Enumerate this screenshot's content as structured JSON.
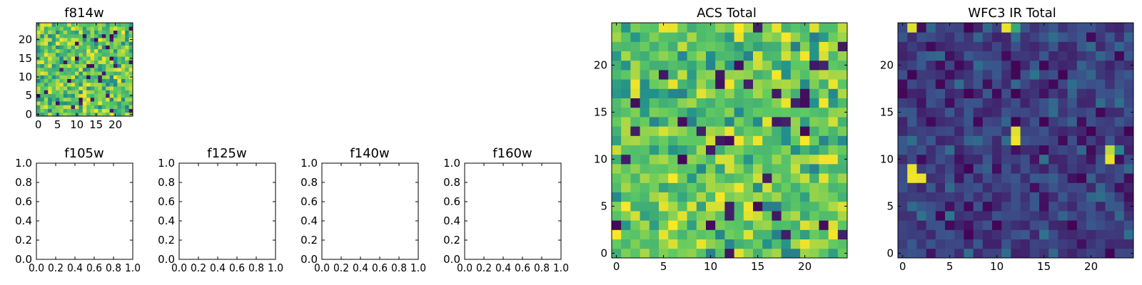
{
  "chart_data": [
    {
      "id": "f814w",
      "type": "heatmap",
      "title": "f814w",
      "grid_size": 25,
      "xlim": [
        -0.5,
        24.5
      ],
      "ylim": [
        -0.5,
        24.5
      ],
      "xticks": [
        0,
        5,
        10,
        15,
        20
      ],
      "yticks": [
        0,
        5,
        10,
        15,
        20
      ],
      "colormap": "viridis",
      "color_range": [
        0,
        1
      ],
      "seed": 814,
      "value_profile": "high"
    },
    {
      "id": "acs_total",
      "type": "heatmap",
      "title": "ACS Total",
      "grid_size": 25,
      "xlim": [
        -0.5,
        24.5
      ],
      "ylim": [
        -0.5,
        24.5
      ],
      "xticks": [
        0,
        5,
        10,
        15,
        20
      ],
      "yticks": [
        0,
        5,
        10,
        15,
        20
      ],
      "colormap": "viridis",
      "color_range": [
        0,
        1
      ],
      "seed": 4242,
      "value_profile": "high"
    },
    {
      "id": "wfc3_ir_total",
      "type": "heatmap",
      "title": "WFC3 IR Total",
      "grid_size": 25,
      "xlim": [
        -0.5,
        24.5
      ],
      "ylim": [
        -0.5,
        24.5
      ],
      "xticks": [
        0,
        5,
        10,
        15,
        20
      ],
      "yticks": [
        0,
        5,
        10,
        15,
        20
      ],
      "colormap": "viridis",
      "color_range": [
        0,
        1
      ],
      "seed": 9001,
      "value_profile": "low",
      "bright_cells": [
        {
          "x": 1,
          "y": 24,
          "value": 0.95
        },
        {
          "x": 11,
          "y": 24,
          "value": 0.97
        },
        {
          "x": 12,
          "y": 24,
          "value": 0.6
        },
        {
          "x": 12,
          "y": 12,
          "value": 0.98
        },
        {
          "x": 12,
          "y": 13,
          "value": 0.95
        },
        {
          "x": 22,
          "y": 10,
          "value": 0.97
        },
        {
          "x": 22,
          "y": 11,
          "value": 0.9
        },
        {
          "x": 23,
          "y": 11,
          "value": 0.45
        },
        {
          "x": 1,
          "y": 9,
          "value": 0.97
        },
        {
          "x": 1,
          "y": 8,
          "value": 0.98
        },
        {
          "x": 2,
          "y": 8,
          "value": 0.97
        },
        {
          "x": 1,
          "y": 5,
          "value": 0.35
        },
        {
          "x": 5,
          "y": 4,
          "value": 0.4
        }
      ]
    },
    {
      "id": "f105w",
      "type": "heatmap",
      "title": "f105w",
      "empty": true,
      "xlim": [
        0,
        1
      ],
      "ylim": [
        0,
        1
      ],
      "xticks": [
        "0.0",
        "0.2",
        "0.4",
        "0.6",
        "0.8",
        "1.0"
      ],
      "yticks": [
        "0.0",
        "0.2",
        "0.4",
        "0.6",
        "0.8",
        "1.0"
      ]
    },
    {
      "id": "f125w",
      "type": "heatmap",
      "title": "f125w",
      "empty": true,
      "xlim": [
        0,
        1
      ],
      "ylim": [
        0,
        1
      ],
      "xticks": [
        "0.0",
        "0.2",
        "0.4",
        "0.6",
        "0.8",
        "1.0"
      ],
      "yticks": [
        "0.0",
        "0.2",
        "0.4",
        "0.6",
        "0.8",
        "1.0"
      ]
    },
    {
      "id": "f140w",
      "type": "heatmap",
      "title": "f140w",
      "empty": true,
      "xlim": [
        0,
        1
      ],
      "ylim": [
        0,
        1
      ],
      "xticks": [
        "0.0",
        "0.2",
        "0.4",
        "0.6",
        "0.8",
        "1.0"
      ],
      "yticks": [
        "0.0",
        "0.2",
        "0.4",
        "0.6",
        "0.8",
        "1.0"
      ]
    },
    {
      "id": "f160w",
      "type": "heatmap",
      "title": "f160w",
      "empty": true,
      "xlim": [
        0,
        1
      ],
      "ylim": [
        0,
        1
      ],
      "xticks": [
        "0.0",
        "0.2",
        "0.4",
        "0.6",
        "0.8",
        "1.0"
      ],
      "yticks": [
        "0.0",
        "0.2",
        "0.4",
        "0.6",
        "0.8",
        "1.0"
      ]
    }
  ]
}
